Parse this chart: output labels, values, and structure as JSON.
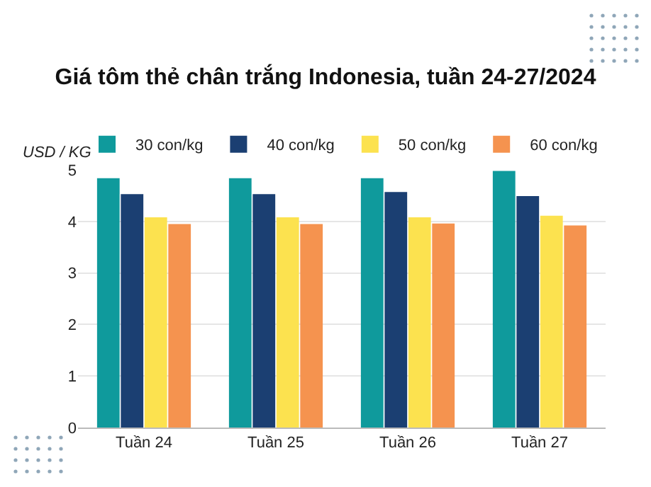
{
  "chart_data": {
    "type": "bar",
    "title": "Giá tôm thẻ chân trắng Indonesia, tuần 24-27/2024",
    "ylabel": "USD / KG",
    "categories": [
      "Tuần 24",
      "Tuần 25",
      "Tuần 26",
      "Tuần 27"
    ],
    "series": [
      {
        "name": "30 con/kg",
        "color": "#0f9a9c",
        "values": [
          4.84,
          4.84,
          4.84,
          4.98
        ]
      },
      {
        "name": "40 con/kg",
        "color": "#1b3f72",
        "values": [
          4.53,
          4.53,
          4.57,
          4.49
        ]
      },
      {
        "name": "50 con/kg",
        "color": "#fce24f",
        "values": [
          4.08,
          4.08,
          4.08,
          4.11
        ]
      },
      {
        "name": "60 con/kg",
        "color": "#f5934f",
        "values": [
          3.95,
          3.95,
          3.96,
          3.92
        ]
      }
    ],
    "ylim": [
      0,
      5
    ],
    "yticks": [
      0,
      1,
      2,
      3,
      4,
      5
    ],
    "grid": "y",
    "legend": "top"
  }
}
